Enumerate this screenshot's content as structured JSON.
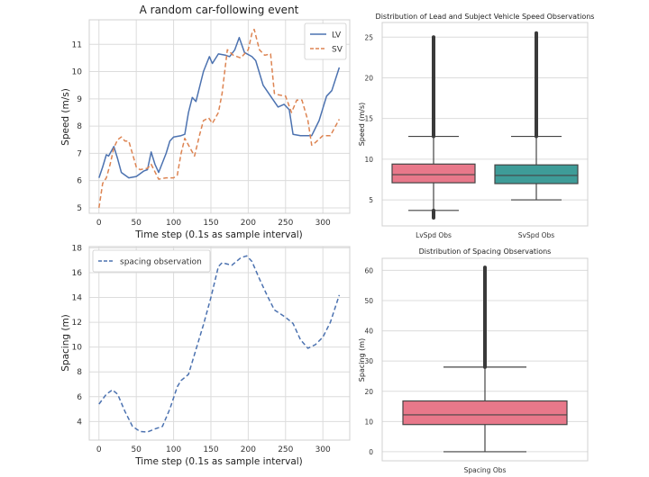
{
  "chart_data": [
    {
      "type": "line",
      "title": "A random car-following event",
      "xlabel": "Time step (0.1s as sample interval)",
      "ylabel": "Speed (m/s)",
      "xlim": [
        -13,
        336
      ],
      "ylim": [
        4.8,
        11.9
      ],
      "xticks": [
        0,
        50,
        100,
        150,
        200,
        250,
        300
      ],
      "yticks": [
        5,
        6,
        7,
        8,
        9,
        10,
        11
      ],
      "grid": true,
      "legend": "top-right",
      "series": [
        {
          "name": "LV",
          "style": "solid",
          "color": "#4c72b0",
          "x": [
            0,
            5,
            10,
            13,
            20,
            25,
            30,
            40,
            50,
            60,
            65,
            70,
            75,
            80,
            90,
            95,
            100,
            110,
            115,
            120,
            125,
            130,
            140,
            148,
            152,
            160,
            170,
            175,
            182,
            188,
            195,
            205,
            210,
            220,
            230,
            240,
            248,
            255,
            260,
            270,
            285,
            295,
            305,
            312,
            322
          ],
          "y": [
            6.1,
            6.5,
            6.95,
            6.9,
            7.25,
            6.8,
            6.3,
            6.1,
            6.15,
            6.35,
            6.4,
            7.05,
            6.6,
            6.3,
            7.0,
            7.45,
            7.6,
            7.65,
            7.7,
            8.5,
            9.05,
            8.9,
            10.0,
            10.55,
            10.3,
            10.65,
            10.6,
            10.55,
            10.8,
            11.25,
            10.7,
            10.55,
            10.4,
            9.5,
            9.1,
            8.7,
            8.8,
            8.6,
            7.7,
            7.65,
            7.65,
            8.2,
            9.1,
            9.3,
            10.15
          ]
        },
        {
          "name": "SV",
          "style": "dashed",
          "color": "#dd8452",
          "x": [
            0,
            5,
            10,
            15,
            20,
            25,
            30,
            35,
            40,
            50,
            55,
            65,
            70,
            80,
            90,
            100,
            105,
            110,
            115,
            122,
            128,
            135,
            140,
            147,
            152,
            160,
            165,
            172,
            180,
            190,
            200,
            205,
            208,
            215,
            222,
            230,
            235,
            240,
            250,
            258,
            265,
            272,
            280,
            285,
            290,
            300,
            310,
            322
          ],
          "y": [
            5.0,
            5.9,
            6.1,
            6.6,
            7.2,
            7.5,
            7.6,
            7.45,
            7.45,
            6.5,
            6.4,
            6.45,
            6.6,
            6.05,
            6.1,
            6.1,
            6.2,
            7.0,
            7.55,
            7.2,
            6.9,
            7.7,
            8.2,
            8.3,
            8.1,
            8.5,
            9.2,
            10.8,
            10.6,
            10.5,
            10.8,
            11.4,
            11.55,
            10.8,
            10.6,
            10.65,
            9.2,
            9.15,
            9.1,
            8.5,
            8.95,
            8.95,
            8.2,
            7.3,
            7.4,
            7.65,
            7.65,
            8.25
          ]
        }
      ]
    },
    {
      "type": "box",
      "title": "Distribution of Lead and Subject Vehicle Speed Observations",
      "ylabel": "Speed (m/s)",
      "ylim": [
        1.8,
        26.8
      ],
      "yticks": [
        5,
        10,
        15,
        20,
        25
      ],
      "grid": true,
      "categories": [
        "LvSpd Obs",
        "SvSpd Obs"
      ],
      "boxes": [
        {
          "color": "#e8788a",
          "q1": 7.1,
          "median": 8.1,
          "q3": 9.4,
          "whisker_low": 3.7,
          "whisker_high": 12.8,
          "outliers_low": [
            2.8,
            3.7
          ],
          "outliers_high": [
            12.8,
            25.0
          ]
        },
        {
          "color": "#3e9c98",
          "q1": 7.0,
          "median": 8.0,
          "q3": 9.3,
          "whisker_low": 5.0,
          "whisker_high": 12.8,
          "outliers_low": [],
          "outliers_high": [
            12.8,
            25.5
          ]
        }
      ]
    },
    {
      "type": "line",
      "xlabel": "Time step (0.1s as sample interval)",
      "ylabel": "Spacing (m)",
      "xlim": [
        -13,
        336
      ],
      "ylim": [
        2.5,
        18.1
      ],
      "xticks": [
        0,
        50,
        100,
        150,
        200,
        250,
        300
      ],
      "yticks": [
        4,
        6,
        8,
        10,
        12,
        14,
        16,
        18
      ],
      "grid": true,
      "legend": "top-left",
      "series": [
        {
          "name": "spacing observation",
          "style": "dashed",
          "color": "#4c72b0",
          "x": [
            0,
            10,
            18,
            25,
            35,
            45,
            55,
            65,
            75,
            85,
            95,
            105,
            110,
            120,
            130,
            140,
            150,
            160,
            165,
            178,
            190,
            198,
            205,
            215,
            225,
            235,
            250,
            260,
            270,
            280,
            290,
            300,
            310,
            322
          ],
          "y": [
            5.4,
            6.2,
            6.55,
            6.2,
            4.8,
            3.6,
            3.2,
            3.15,
            3.4,
            3.6,
            5.0,
            6.8,
            7.3,
            7.8,
            9.8,
            11.8,
            14.0,
            16.5,
            16.8,
            16.6,
            17.2,
            17.35,
            16.9,
            15.5,
            14.2,
            13.0,
            12.4,
            11.9,
            10.6,
            9.9,
            10.2,
            10.8,
            12.0,
            14.2
          ]
        }
      ]
    },
    {
      "type": "box",
      "title": "Distribution of Spacing Observations",
      "ylabel": "Spacing (m)",
      "ylim": [
        -3,
        64
      ],
      "yticks": [
        0,
        10,
        20,
        30,
        40,
        50,
        60
      ],
      "grid": true,
      "categories": [
        "Spacing Obs"
      ],
      "boxes": [
        {
          "color": "#e8788a",
          "q1": 9.0,
          "median": 12.2,
          "q3": 16.8,
          "whisker_low": 0,
          "whisker_high": 28,
          "outliers_low": [],
          "outliers_high": [
            28,
            61
          ]
        }
      ]
    }
  ]
}
